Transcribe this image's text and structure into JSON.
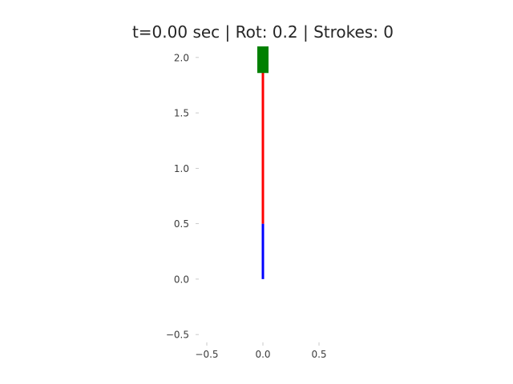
{
  "title_parts": {
    "time": "t=0.00 sec",
    "rotation": "Rot: 0.2",
    "strokes": "Strokes: 0",
    "separator": " | "
  },
  "chart_data": {
    "type": "line",
    "title": "t=0.00 sec | Rot: 0.2 | Strokes: 0",
    "xlim": [
      -0.6,
      0.6
    ],
    "ylim": [
      -0.6,
      2.1
    ],
    "x_ticks": [
      {
        "value": -0.5,
        "label": "−0.5"
      },
      {
        "value": 0.0,
        "label": "0.0"
      },
      {
        "value": 0.5,
        "label": "0.5"
      }
    ],
    "y_ticks": [
      {
        "value": -0.5,
        "label": "−0.5"
      },
      {
        "value": 0.0,
        "label": "0.0"
      },
      {
        "value": 0.5,
        "label": "0.5"
      },
      {
        "value": 1.0,
        "label": "1.0"
      },
      {
        "value": 1.5,
        "label": "1.5"
      },
      {
        "value": 2.0,
        "label": "2.0"
      }
    ],
    "grid": false,
    "series": [
      {
        "x": [
          0.0,
          0.0
        ],
        "y": [
          0.0,
          0.5
        ],
        "color": "#0000ff"
      },
      {
        "x": [
          0.0,
          0.0
        ],
        "y": [
          0.5,
          2.0
        ],
        "color": "#ff0000"
      }
    ],
    "marker": {
      "x": 0.0,
      "y": 1.98,
      "width": 0.1,
      "height": 0.24,
      "color": "#008000"
    }
  }
}
